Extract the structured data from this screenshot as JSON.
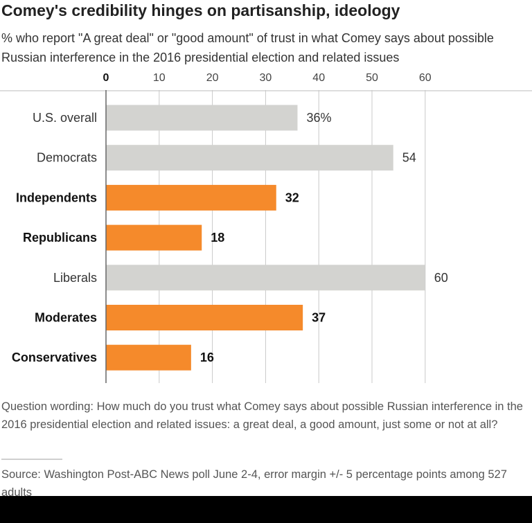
{
  "title": "Comey's credibility hinges on partisanship, ideology",
  "subtitle": "% who report \"A great deal\" or \"good amount\" of trust in what Comey says about possible Russian interference in the 2016 presidential election and related issues",
  "question_wording": "Question wording: How much do you trust what Comey says about possible Russian interference in the 2016 presidential election and related issues: a great deal, a good amount, just some or not at all?",
  "source": "Source: Washington Post-ABC News poll June 2-4, error margin +/- 5 percentage points among 527 adults",
  "colors": {
    "highlight": "#f58a2b",
    "base": "#d3d3d0",
    "grid": "#c8c8c8",
    "axis": "#666666"
  },
  "chart_data": {
    "type": "bar",
    "orientation": "horizontal",
    "title": "Comey's credibility hinges on partisanship, ideology",
    "xlabel": "",
    "ylabel": "",
    "xlim": [
      0,
      60
    ],
    "ticks": [
      0,
      10,
      20,
      30,
      40,
      50,
      60
    ],
    "tick_labels": [
      "0",
      "10",
      "20",
      "30",
      "40",
      "50",
      "60"
    ],
    "grid": true,
    "legend": "none",
    "categories": [
      "U.S. overall",
      "Democrats",
      "Independents",
      "Republicans",
      "Liberals",
      "Moderates",
      "Conservatives"
    ],
    "values": [
      36,
      54,
      32,
      18,
      60,
      37,
      16
    ],
    "value_labels": [
      "36%",
      "54",
      "32",
      "18",
      "60",
      "37",
      "16"
    ],
    "highlighted": [
      false,
      false,
      true,
      true,
      false,
      true,
      true
    ]
  }
}
